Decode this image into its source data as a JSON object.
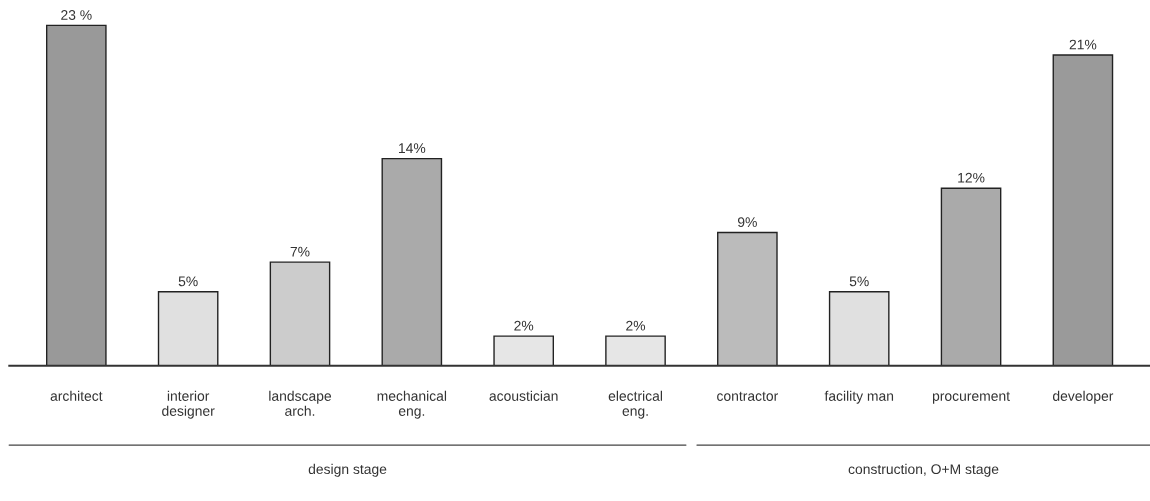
{
  "chart_data": {
    "type": "bar",
    "categories": [
      "architect",
      "interior\ndesigner",
      "landscape\narch.",
      "mechanical\neng.",
      "acoustician",
      "electrical\neng.",
      "contractor",
      "facility man",
      "procurement",
      "developer"
    ],
    "values": [
      23,
      5,
      7,
      14,
      2,
      2,
      9,
      5,
      12,
      21
    ],
    "value_labels": [
      "23 %",
      "5%",
      "7%",
      "14%",
      "2%",
      "2%",
      "9%",
      "5%",
      "12%",
      "21%"
    ],
    "colors": [
      "#999999",
      "#e0e0e0",
      "#cccccc",
      "#aaaaaa",
      "#e6e6e6",
      "#e6e6e6",
      "#bbbbbb",
      "#e0e0e0",
      "#aaaaaa",
      "#9a9a9a"
    ],
    "grid": false,
    "annotations": [
      "design stage",
      "construction, O+M stage"
    ]
  }
}
